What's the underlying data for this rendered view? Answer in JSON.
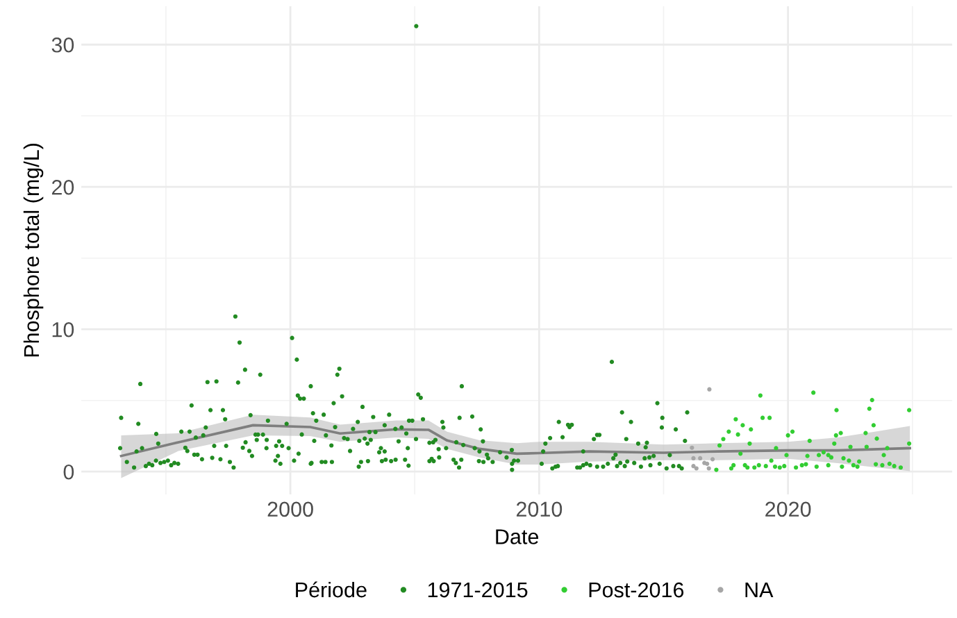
{
  "chart_data": {
    "type": "scatter",
    "xlabel": "Date",
    "ylabel": "Phosphore total (mg/L)",
    "legend_title": "Période",
    "xlim": [
      1991.6,
      2026.6
    ],
    "xticks": [
      2000,
      2010,
      2020
    ],
    "ylim": [
      -1.6,
      32.7
    ],
    "yticks": [
      0,
      10,
      20,
      30
    ],
    "grid": true,
    "legend": "bottom",
    "series": [
      {
        "name": "1971-2015",
        "color": "#228b22",
        "marker": "circle",
        "x": [
          2005.06,
          1997.79,
          1997.96,
          2000.07,
          2000.26,
          1993.97,
          1998.18,
          1998.79,
          1996.67,
          1997.03,
          1997.9,
          2000.3,
          2000.39,
          2000.54,
          1993.2,
          1993.89,
          1996.03,
          1996.79,
          1997.29,
          1998.4,
          1997.38,
          1996.6,
          1995.62,
          1995.95,
          1994.61,
          1996.2,
          1996.5,
          1998.6,
          1998.7,
          1998.9,
          1999.1,
          1999.85,
          2000.46,
          1998.2,
          1998.65,
          1999.05,
          1999.55,
          1999.43,
          1999.67,
          1999.93,
          1994.69,
          1994.04,
          1993.16,
          1993.82,
          1995.78,
          1995.86,
          1996.14,
          1996.27,
          1996.45,
          1996.94,
          1997.42,
          1996.86,
          1997.19,
          1997.57,
          1997.72,
          1998.09,
          1998.35,
          1998.46,
          1999.04,
          1999.4,
          1999.5,
          1999.6,
          2000.15,
          2000.33,
          2000.82,
          1993.43,
          1993.72,
          1994.19,
          1994.32,
          1994.45,
          1994.6,
          1994.78,
          1994.93,
          1995.08,
          1995.21,
          1995.34,
          1995.49,
          2001.97,
          2001.89,
          2000.82,
          2002.08,
          2001.74,
          2000.91,
          2001.34,
          2002.9,
          2003.97,
          2003.33,
          2003.79,
          2005.14,
          2005.24,
          2006.89,
          2007.31,
          2006.8,
          2007.65,
          2006.11,
          2006.15,
          2005.33,
          2004.9,
          2004.77,
          2001.04,
          2001.8,
          2002.52,
          2002.71,
          2003.18,
          2003.42,
          2004.22,
          2004.47,
          2004.66,
          2000.96,
          2001.43,
          2001.65,
          2002.16,
          2002.3,
          2002.4,
          2002.77,
          2002.99,
          2003.1,
          2003.23,
          2003.57,
          2003.64,
          2003.79,
          2004.35,
          2004.72,
          2005.05,
          2005.59,
          2005.74,
          2005.83,
          2005.96,
          2006.26,
          2005.98,
          2006.67,
          2006.95,
          2007.41,
          2007.74,
          2007.6,
          2007.9,
          2008.43,
          2008.9,
          2000.85,
          2001.26,
          2001.41,
          2001.67,
          2002.75,
          2002.84,
          2003.12,
          2003.68,
          2003.83,
          2004.05,
          2004.23,
          2004.61,
          2004.75,
          2005.59,
          2005.68,
          2005.76,
          2006.56,
          2006.65,
          2006.78,
          2006.87,
          2007.58,
          2007.76,
          2007.95,
          2008.13,
          2008.69,
          2008.91,
          2008.91,
          2009.15,
          2012.92,
          2014.75,
          2013.33,
          2015.95,
          2014.95,
          2014.93,
          2013.69,
          2015.49,
          2010.79,
          2011.16,
          2011.31,
          2011.22,
          2010.94,
          2010.44,
          2010.25,
          2012.2,
          2012.33,
          2012.42,
          2013.5,
          2013.98,
          2014.33,
          2014.28,
          2015.86,
          2015.25,
          2010.16,
          2011.77,
          2013.07,
          2012.98,
          2014.6,
          2014.43,
          2014.24,
          2008.99,
          2010.1,
          2010.53,
          2010.66,
          2010.75,
          2011.53,
          2011.64,
          2011.77,
          2011.9,
          2012.05,
          2012.33,
          2012.57,
          2012.76,
          2013.13,
          2013.26,
          2013.44,
          2013.54,
          2013.82,
          2014.09,
          2014.47,
          2014.84,
          2015.12,
          2015.39,
          2015.62,
          2015.73
        ],
        "values": [
          31.3,
          10.9,
          9.07,
          9.39,
          7.87,
          6.16,
          7.16,
          6.81,
          6.29,
          6.34,
          6.26,
          5.35,
          5.13,
          5.13,
          3.78,
          3.36,
          4.65,
          4.32,
          4.32,
          3.97,
          3.68,
          3.1,
          2.81,
          2.81,
          2.65,
          2.39,
          2.55,
          2.6,
          2.6,
          2.6,
          3.58,
          3.36,
          2.61,
          2.06,
          2.23,
          2.23,
          2.13,
          1.81,
          1.81,
          1.65,
          1.97,
          1.65,
          1.65,
          1.42,
          1.68,
          1.45,
          1.19,
          1.19,
          0.87,
          1.81,
          1.81,
          0.97,
          0.87,
          0.68,
          0.29,
          1.68,
          1.45,
          1.1,
          1.65,
          0.77,
          1.1,
          0.55,
          0.77,
          1.26,
          0.55,
          0.68,
          0.29,
          0.39,
          0.55,
          0.45,
          0.77,
          0.61,
          0.68,
          0.77,
          0.45,
          0.61,
          0.55,
          7.23,
          6.81,
          6.0,
          5.29,
          4.81,
          4.1,
          4.0,
          4.55,
          4.0,
          3.84,
          3.26,
          5.42,
          5.19,
          6.0,
          3.87,
          3.78,
          2.97,
          3.49,
          3.1,
          3.68,
          3.58,
          3.58,
          3.58,
          3.13,
          3.0,
          3.49,
          2.78,
          2.78,
          3.0,
          3.1,
          2.68,
          2.16,
          2.55,
          1.84,
          2.36,
          2.29,
          1.45,
          2.16,
          2.32,
          1.97,
          2.23,
          1.36,
          1.65,
          1.42,
          2.13,
          1.65,
          2.29,
          2.03,
          2.06,
          2.23,
          1.58,
          1.65,
          1.0,
          2.06,
          1.87,
          1.65,
          2.13,
          1.42,
          1.19,
          1.36,
          1.52,
          0.61,
          0.68,
          0.68,
          0.68,
          0.35,
          0.68,
          0.74,
          0.74,
          0.84,
          0.74,
          0.84,
          0.84,
          0.42,
          0.74,
          0.9,
          0.74,
          0.84,
          0.61,
          0.29,
          0.84,
          0.74,
          0.68,
          0.94,
          0.68,
          1.0,
          0.55,
          0.13,
          0.77,
          7.71,
          4.81,
          4.16,
          4.16,
          3.78,
          3.1,
          3.49,
          2.97,
          3.49,
          3.29,
          3.29,
          3.13,
          2.42,
          2.36,
          1.97,
          2.29,
          2.58,
          2.58,
          2.29,
          1.97,
          2.03,
          1.71,
          2.16,
          1.16,
          1.42,
          1.42,
          1.19,
          0.94,
          1.1,
          1.0,
          0.94,
          0.77,
          0.55,
          0.23,
          0.35,
          0.39,
          0.29,
          0.29,
          0.45,
          0.55,
          0.45,
          0.35,
          0.35,
          0.55,
          0.39,
          0.61,
          0.39,
          0.71,
          0.61,
          0.35,
          0.45,
          0.55,
          0.23,
          0.39,
          0.39,
          0.23
        ]
      },
      {
        "name": "Post-2016",
        "color": "#32cd32",
        "marker": "circle",
        "x": [
          2017.25,
          2017.12,
          2017.4,
          2018.89,
          2021.02,
          2023.38,
          2023.27,
          2021.95,
          2024.87,
          2017.9,
          2018.18,
          2017.62,
          2017.99,
          2018.51,
          2018.98,
          2019.26,
          2020.18,
          2020.0,
          2021.93,
          2022.12,
          2023.44,
          2023.12,
          2023.57,
          2020.87,
          2021.86,
          2022.51,
          2023.16,
          2018.46,
          2019.52,
          2018.09,
          2019.33,
          2019.94,
          2020.78,
          2021.24,
          2021.43,
          2021.62,
          2021.74,
          2022.23,
          2023.85,
          2023.99,
          2022.86,
          2022.45,
          2024.87,
          2017.72,
          2017.81,
          2018.27,
          2018.37,
          2018.65,
          2018.83,
          2019.11,
          2019.48,
          2019.67,
          2019.85,
          2020.32,
          2020.56,
          2020.72,
          2021.15,
          2021.62,
          2022.17,
          2022.63,
          2022.79,
          2023.53,
          2023.79,
          2024.08,
          2024.27,
          2024.53
        ],
        "values": [
          1.84,
          0.13,
          2.29,
          5.35,
          5.55,
          5.03,
          4.42,
          4.32,
          4.32,
          3.68,
          3.26,
          2.81,
          2.61,
          2.97,
          3.78,
          3.78,
          2.81,
          2.55,
          2.55,
          2.71,
          3.26,
          2.71,
          2.32,
          2.16,
          1.97,
          1.74,
          1.74,
          1.97,
          1.65,
          1.26,
          0.77,
          1.16,
          1.1,
          1.16,
          1.36,
          1.16,
          1.0,
          0.94,
          1.16,
          1.65,
          0.71,
          0.77,
          1.97,
          0.23,
          0.45,
          0.45,
          0.29,
          0.29,
          0.45,
          0.39,
          0.35,
          0.29,
          0.39,
          0.29,
          0.45,
          0.52,
          0.35,
          0.45,
          0.35,
          0.45,
          0.35,
          0.52,
          0.45,
          0.55,
          0.39,
          0.29
        ]
      },
      {
        "name": "NA",
        "color": "#a6a6a6",
        "marker": "circle",
        "x": [
          2016.14,
          2016.2,
          2016.47,
          2016.2,
          2016.32,
          2016.64,
          2016.75,
          2016.97,
          2016.82,
          2016.84
        ],
        "values": [
          1.68,
          0.94,
          0.94,
          0.39,
          0.23,
          0.61,
          0.55,
          0.87,
          0.23,
          5.78
        ]
      },
      {
        "type": "line",
        "color": "#7f7f7f",
        "x": [
          1993.2,
          1995.5,
          1998.5,
          2000.8,
          2002.0,
          2004.25,
          2005.55,
          2006.3,
          2007.6,
          2009.1,
          2010,
          2012,
          2015,
          2017.2,
          2020,
          2022,
          2024.9
        ],
        "values": [
          1.1,
          2.06,
          3.26,
          3.13,
          2.68,
          2.97,
          2.94,
          2.19,
          1.6,
          1.26,
          1.3,
          1.42,
          1.33,
          1.42,
          1.49,
          1.49,
          1.65
        ],
        "lower": [
          -0.45,
          1.45,
          2.55,
          2.5,
          2.1,
          2.4,
          2.3,
          1.6,
          1.0,
          0.5,
          0.5,
          0.7,
          0.8,
          0.8,
          0.9,
          0.6,
          0.03
        ],
        "upper": [
          2.55,
          2.7,
          4.0,
          3.8,
          3.3,
          3.6,
          3.6,
          2.8,
          2.2,
          2.0,
          2.1,
          2.1,
          1.9,
          2.0,
          2.1,
          2.4,
          3.2
        ]
      }
    ]
  }
}
